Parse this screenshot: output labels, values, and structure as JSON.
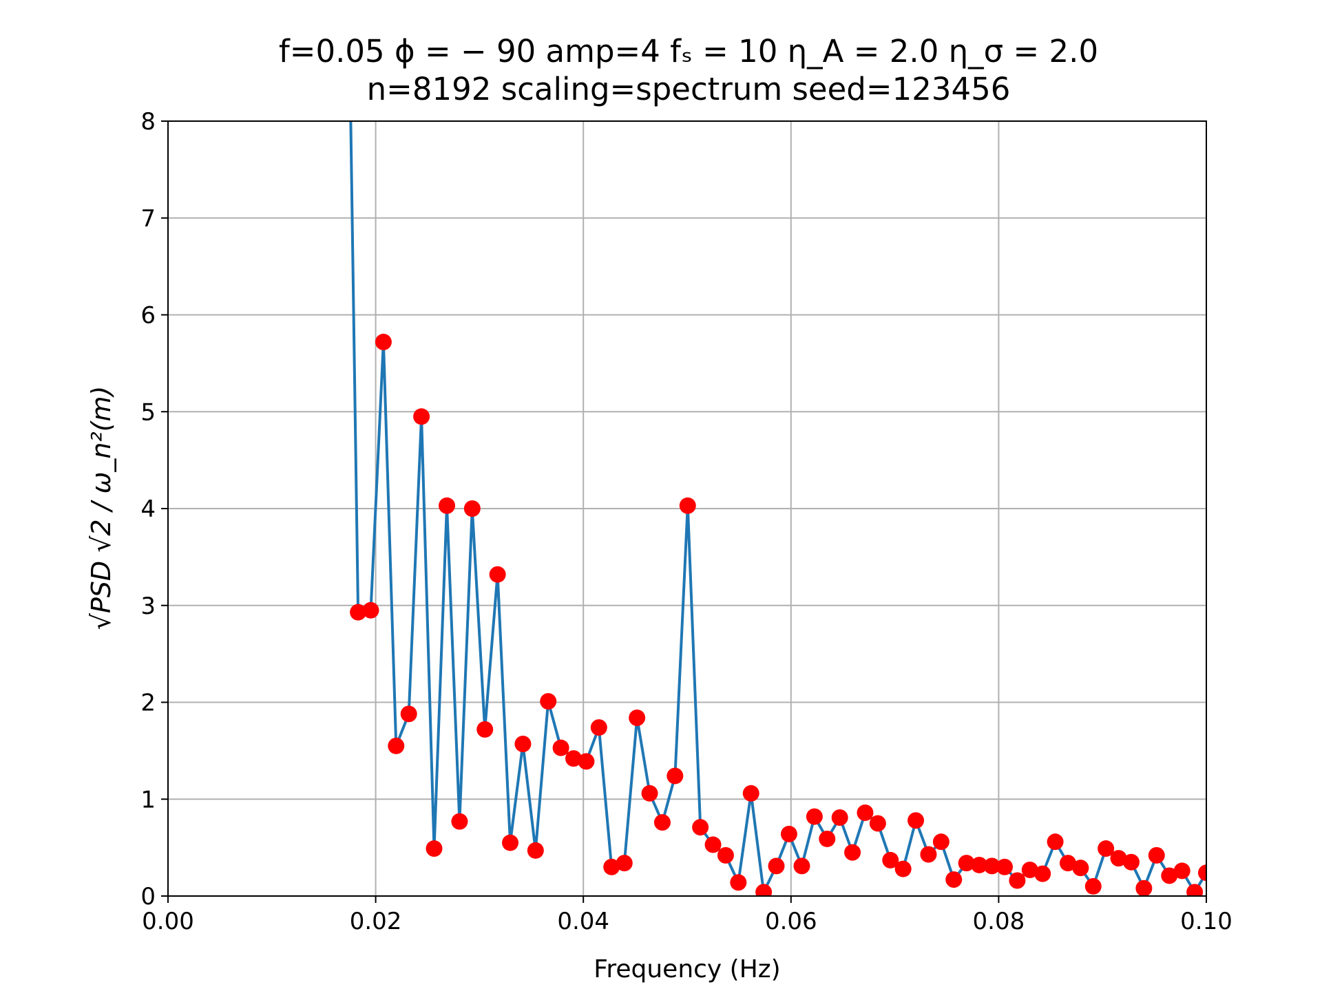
{
  "chart_data": {
    "type": "line",
    "title_line1": "f=0.05 ϕ = − 90 amp=4 fₛ = 10 η_A = 2.0 η_σ = 2.0",
    "title_line2": "n=8192 scaling=spectrum seed=123456",
    "xlabel": "Frequency (Hz)",
    "ylabel": "√PSD √2 / ω_n²(m)",
    "xlim": [
      0.0,
      0.1
    ],
    "ylim": [
      0,
      8
    ],
    "xticks": [
      0.0,
      0.02,
      0.04,
      0.06,
      0.08,
      0.1
    ],
    "xtick_labels": [
      "0.00",
      "0.02",
      "0.04",
      "0.06",
      "0.08",
      "0.10"
    ],
    "yticks": [
      0,
      1,
      2,
      3,
      4,
      5,
      6,
      7,
      8
    ],
    "ytick_labels": [
      "0",
      "1",
      "2",
      "3",
      "4",
      "5",
      "6",
      "7",
      "8"
    ],
    "grid": true,
    "line_color": "#1f77b4",
    "marker_color": "#ff0000",
    "series": [
      {
        "x": [
          0.0176,
          0.01831,
          0.01953,
          0.02075,
          0.02197,
          0.02319,
          0.02441,
          0.02563,
          0.02686,
          0.02808,
          0.0293,
          0.03052,
          0.03174,
          0.03296,
          0.03418,
          0.0354,
          0.03662,
          0.03784,
          0.03906,
          0.04028,
          0.0415,
          0.04272,
          0.04395,
          0.04517,
          0.04639,
          0.04761,
          0.04883,
          0.05005,
          0.05127,
          0.05249,
          0.05371,
          0.05493,
          0.05615,
          0.05737,
          0.05859,
          0.05981,
          0.06104,
          0.06226,
          0.06348,
          0.0647,
          0.06592,
          0.06714,
          0.06836,
          0.06958,
          0.0708,
          0.07202,
          0.07324,
          0.07446,
          0.07568,
          0.0769,
          0.07813,
          0.07935,
          0.08057,
          0.08179,
          0.08301,
          0.08423,
          0.08545,
          0.08667,
          0.08789,
          0.08911,
          0.09033,
          0.09155,
          0.09277,
          0.09399,
          0.09521,
          0.09644,
          0.09766,
          0.09888,
          0.1
        ],
        "y": [
          8.0,
          2.93,
          2.95,
          5.72,
          1.55,
          1.88,
          4.95,
          0.49,
          4.03,
          0.77,
          4.0,
          1.72,
          3.32,
          0.55,
          1.57,
          0.47,
          2.01,
          1.53,
          1.42,
          1.39,
          1.74,
          0.3,
          0.34,
          1.84,
          1.06,
          0.76,
          1.24,
          4.03,
          0.71,
          0.53,
          0.42,
          0.14,
          1.06,
          0.04,
          0.31,
          0.64,
          0.31,
          0.82,
          0.59,
          0.81,
          0.45,
          0.86,
          0.75,
          0.37,
          0.28,
          0.78,
          0.43,
          0.56,
          0.17,
          0.34,
          0.32,
          0.31,
          0.3,
          0.16,
          0.27,
          0.23,
          0.56,
          0.34,
          0.29,
          0.1,
          0.49,
          0.39,
          0.35,
          0.08,
          0.42,
          0.21,
          0.26,
          0.04,
          0.24
        ]
      }
    ]
  }
}
